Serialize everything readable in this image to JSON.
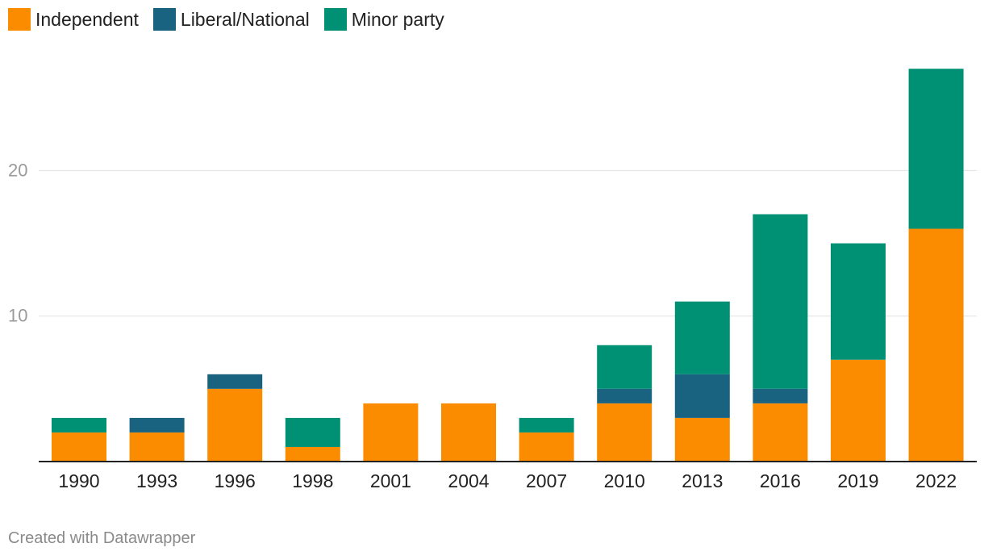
{
  "chart_data": {
    "type": "bar",
    "stacked": true,
    "categories": [
      "1990",
      "1993",
      "1996",
      "1998",
      "2001",
      "2004",
      "2007",
      "2010",
      "2013",
      "2016",
      "2019",
      "2022"
    ],
    "series": [
      {
        "name": "Independent",
        "color": "#fb8c00",
        "values": [
          2,
          2,
          5,
          1,
          4,
          4,
          2,
          4,
          3,
          4,
          7,
          16
        ]
      },
      {
        "name": "Liberal/National",
        "color": "#1a6380",
        "values": [
          0,
          1,
          1,
          0,
          0,
          0,
          0,
          1,
          3,
          1,
          0,
          0
        ]
      },
      {
        "name": "Minor party",
        "color": "#009175",
        "values": [
          1,
          0,
          0,
          2,
          0,
          0,
          1,
          3,
          5,
          12,
          8,
          11
        ]
      }
    ],
    "yticks": [
      10,
      20
    ],
    "ylim": [
      0,
      27
    ],
    "grid": true,
    "legend_position": "top-left",
    "title": "",
    "xlabel": "",
    "ylabel": ""
  },
  "footer": {
    "credit": "Created with Datawrapper"
  }
}
